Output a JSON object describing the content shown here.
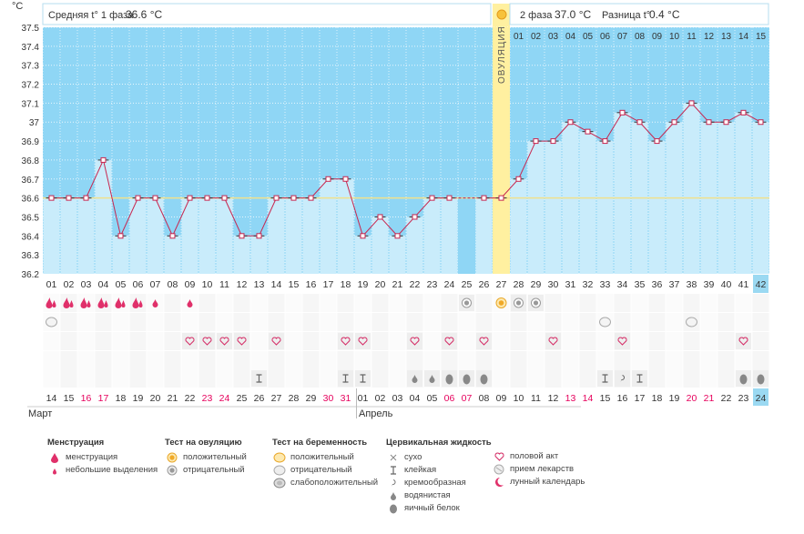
{
  "header": {
    "phase1_label": "Средняя t° 1 фаза",
    "phase1_value": "36.6 °C",
    "phase2_label": "2 фаза",
    "phase2_value": "37.0 °C",
    "diff_label": "Разница t°",
    "diff_value": "0.4 °C"
  },
  "y_unit": "°C",
  "ovulation_label": "ОВУЛЯЦИЯ",
  "months": {
    "first": "Март",
    "second": "Апрель"
  },
  "chart_data": {
    "type": "line",
    "ylim": [
      36.2,
      37.5
    ],
    "yticks": [
      "37.5",
      "37.4",
      "37.3",
      "37.2",
      "37.1",
      "37",
      "36.9",
      "36.8",
      "36.7",
      "36.6",
      "36.5",
      "36.4",
      "36.3",
      "36.2"
    ],
    "cycle_days": [
      "01",
      "02",
      "03",
      "04",
      "05",
      "06",
      "07",
      "08",
      "09",
      "10",
      "11",
      "12",
      "13",
      "14",
      "15",
      "16",
      "17",
      "18",
      "19",
      "20",
      "21",
      "22",
      "23",
      "24",
      "25",
      "26",
      "27",
      "28",
      "29",
      "30",
      "31",
      "32",
      "33",
      "34",
      "35",
      "36",
      "37",
      "38",
      "39",
      "40",
      "41",
      "42"
    ],
    "values": [
      36.6,
      36.6,
      36.6,
      36.8,
      36.4,
      36.6,
      36.6,
      36.4,
      36.6,
      36.6,
      36.6,
      36.4,
      36.4,
      36.6,
      36.6,
      36.6,
      36.7,
      36.7,
      36.4,
      36.5,
      36.4,
      36.5,
      36.6,
      36.6,
      null,
      36.6,
      36.6,
      36.7,
      36.9,
      36.9,
      37.0,
      36.95,
      36.9,
      37.05,
      37.0,
      36.9,
      37.0,
      37.1,
      37.0,
      37.0,
      37.05,
      37.0
    ],
    "coverline": 36.6,
    "ovulation_day": 27,
    "phase2_days": [
      "01",
      "02",
      "03",
      "04",
      "05",
      "06",
      "07",
      "08",
      "09",
      "10",
      "11",
      "12",
      "13",
      "14",
      "15"
    ],
    "calendar_dates": [
      "14",
      "15",
      "16",
      "17",
      "18",
      "19",
      "20",
      "21",
      "22",
      "23",
      "24",
      "25",
      "26",
      "27",
      "28",
      "29",
      "30",
      "31",
      "01",
      "02",
      "03",
      "04",
      "05",
      "06",
      "07",
      "08",
      "09",
      "10",
      "11",
      "12",
      "13",
      "14",
      "15",
      "16",
      "17",
      "18",
      "19",
      "20",
      "21",
      "22",
      "23",
      "24"
    ],
    "weekend_days": [
      3,
      4,
      10,
      11,
      17,
      18,
      24,
      25,
      31,
      32,
      38,
      39
    ],
    "highlight_day": 42
  },
  "markers": {
    "menstruation": [
      1,
      2,
      3,
      4,
      5,
      6
    ],
    "spotting": [
      7,
      9
    ],
    "ovtest_positive": [
      27
    ],
    "ovtest_negative": [
      25,
      28,
      29
    ],
    "pregtest_negative": [
      1,
      33,
      38
    ],
    "intercourse": [
      9,
      10,
      11,
      12,
      14,
      18,
      19,
      22,
      24,
      26,
      30,
      34,
      41
    ],
    "mucus_sticky": [
      13,
      18,
      19,
      33,
      35
    ],
    "mucus_creamy": [
      34
    ],
    "mucus_watery": [
      22,
      23
    ],
    "mucus_eggwhite": [
      24,
      25,
      26,
      41,
      42
    ]
  },
  "legend": {
    "menstruation": {
      "title": "Менструация",
      "items": [
        "менструация",
        "небольшие выделения"
      ]
    },
    "ovtest": {
      "title": "Тест на овуляцию",
      "items": [
        "положительный",
        "отрицательный"
      ]
    },
    "pregtest": {
      "title": "Тест на беременность",
      "items": [
        "положительный",
        "отрицательный",
        "слабоположительный"
      ]
    },
    "mucus": {
      "title": "Цервикальная жидкость",
      "items": [
        "сухо",
        "клейкая",
        "кремообразная",
        "водянистая",
        "яичный белок"
      ]
    },
    "other": {
      "items": [
        "половой акт",
        "прием лекарств",
        "лунный календарь"
      ]
    }
  },
  "colors": {
    "bar": "#c9ecfb",
    "bar_edge": "#99d6f2",
    "bg_top": "#8fd6f5",
    "line": "#c8254e",
    "coverline": "#f0e18c",
    "ovulation": "#fff0a0",
    "weekend": "#e6005c",
    "highlight": "#9bd9f2"
  }
}
